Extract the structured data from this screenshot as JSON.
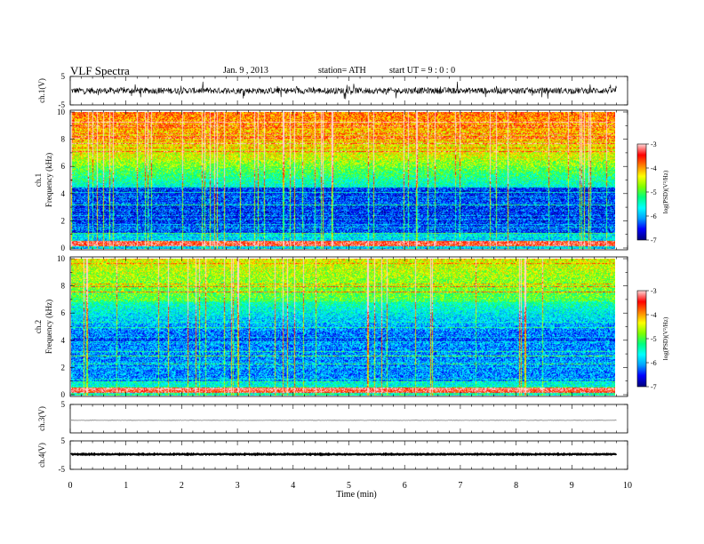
{
  "header": {
    "title": "VLF  Spectra",
    "date": "Jan. 9  , 2013",
    "station": "station= ATH",
    "start": "start  UT  =   9  : 0  : 0"
  },
  "chart_data": [
    {
      "type": "line",
      "name": "ch1-waveform",
      "ylabel": "ch.1(V)",
      "ylim": [
        -5,
        5
      ],
      "yticks": [
        "5",
        "-5"
      ],
      "xlim": [
        0,
        10
      ],
      "baseline": 0,
      "amplitude": 1.1,
      "color": "#000000"
    },
    {
      "type": "heatmap",
      "name": "ch1-spectrogram",
      "ylabel": "ch.1",
      "ylabel2": "Frequency  (kHz)",
      "ylim": [
        0,
        10
      ],
      "yticks": [
        "0",
        "2",
        "4",
        "6",
        "8",
        "10"
      ],
      "xlim": [
        0,
        9.8
      ],
      "colorbar": {
        "label": "log(PSD)(V²/Hz)",
        "ticks": [
          "-3",
          "-4",
          "-5",
          "-6",
          "-7"
        ],
        "range": [
          -7,
          -3
        ]
      }
    },
    {
      "type": "heatmap",
      "name": "ch2-spectrogram",
      "ylabel": "ch.2",
      "ylabel2": "Frequency  (kHz)",
      "ylim": [
        0,
        10
      ],
      "yticks": [
        "0",
        "2",
        "4",
        "6",
        "8",
        "10"
      ],
      "xlim": [
        0,
        9.8
      ],
      "colorbar": {
        "label": "log(PSD)(V²/Hz)",
        "ticks": [
          "-3",
          "-4",
          "-5",
          "-6",
          "-7"
        ],
        "range": [
          -7,
          -3
        ]
      }
    },
    {
      "type": "line",
      "name": "ch3-waveform",
      "ylabel": "ch.3(V)",
      "ylim": [
        -5,
        5
      ],
      "yticks": [
        "5"
      ],
      "xlim": [
        0,
        10
      ],
      "baseline": 0,
      "amplitude": 0.05,
      "color": "#000000"
    },
    {
      "type": "line",
      "name": "ch4-waveform",
      "ylabel": "ch.4(V)",
      "ylim": [
        -5,
        5
      ],
      "yticks": [
        "5",
        "-5"
      ],
      "xlim": [
        0,
        10
      ],
      "baseline": 0,
      "amplitude": 0.15,
      "color": "#000000"
    }
  ],
  "xaxis": {
    "label": "Time  (min)",
    "ticks": [
      "0",
      "1",
      "2",
      "3",
      "4",
      "5",
      "6",
      "7",
      "8",
      "9",
      "10"
    ]
  },
  "colors": {
    "colormap": [
      "#000080",
      "#0000ff",
      "#00a0ff",
      "#00ffff",
      "#00ff80",
      "#80ff00",
      "#ffff00",
      "#ff8000",
      "#ff0000",
      "#ffd0d0"
    ]
  }
}
